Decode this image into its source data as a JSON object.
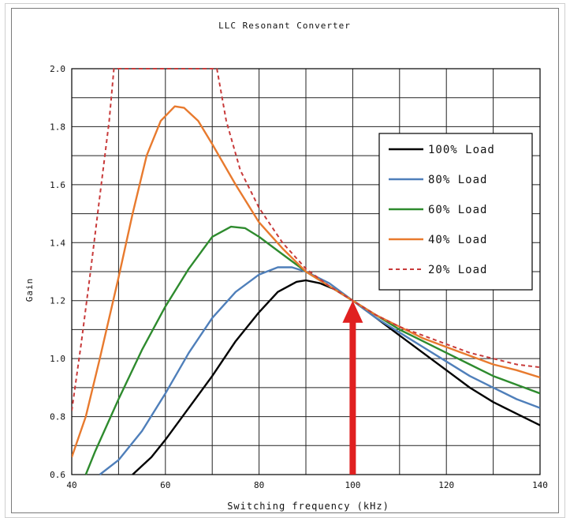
{
  "chart_data": {
    "type": "line",
    "title": "LLC Resonant Converter",
    "xlabel": "Switching frequency (kHz)",
    "ylabel": "Gain",
    "xlim": [
      40,
      140
    ],
    "ylim": [
      0.6,
      2.0
    ],
    "xticks": [
      40,
      60,
      80,
      100,
      120,
      140
    ],
    "yticks": [
      0.6,
      0.8,
      1.0,
      1.2,
      1.4,
      1.6,
      1.8,
      2.0
    ],
    "ytick_labels": [
      "0.6",
      "0.8",
      "1.0",
      "1.2",
      "1.4",
      "1.6",
      "1.8",
      "2.0"
    ],
    "grid": true,
    "legend_position": "top-right",
    "annotation": {
      "type": "arrow",
      "x": 100,
      "y_from": 0.6,
      "y_to": 1.2,
      "color": "#e02020"
    },
    "series": [
      {
        "name": "100% Load",
        "color": "#000000",
        "dash": false,
        "points": [
          [
            53,
            0.6
          ],
          [
            57,
            0.66
          ],
          [
            60,
            0.72
          ],
          [
            65,
            0.83
          ],
          [
            70,
            0.94
          ],
          [
            75,
            1.06
          ],
          [
            80,
            1.16
          ],
          [
            84,
            1.23
          ],
          [
            88,
            1.265
          ],
          [
            90,
            1.27
          ],
          [
            93,
            1.26
          ],
          [
            96,
            1.24
          ],
          [
            100,
            1.2
          ],
          [
            105,
            1.14
          ],
          [
            110,
            1.08
          ],
          [
            115,
            1.02
          ],
          [
            120,
            0.96
          ],
          [
            125,
            0.9
          ],
          [
            130,
            0.85
          ],
          [
            135,
            0.81
          ],
          [
            140,
            0.77
          ]
        ]
      },
      {
        "name": "80% Load",
        "color": "#4f7fba",
        "dash": false,
        "points": [
          [
            46,
            0.6
          ],
          [
            50,
            0.65
          ],
          [
            55,
            0.75
          ],
          [
            60,
            0.88
          ],
          [
            65,
            1.02
          ],
          [
            70,
            1.14
          ],
          [
            75,
            1.23
          ],
          [
            80,
            1.29
          ],
          [
            84,
            1.315
          ],
          [
            87,
            1.315
          ],
          [
            90,
            1.3
          ],
          [
            95,
            1.26
          ],
          [
            100,
            1.2
          ],
          [
            105,
            1.14
          ],
          [
            110,
            1.09
          ],
          [
            115,
            1.04
          ],
          [
            120,
            0.99
          ],
          [
            125,
            0.94
          ],
          [
            130,
            0.9
          ],
          [
            135,
            0.86
          ],
          [
            140,
            0.83
          ]
        ]
      },
      {
        "name": "60% Load",
        "color": "#2e8b2e",
        "dash": false,
        "points": [
          [
            43,
            0.6
          ],
          [
            45,
            0.68
          ],
          [
            50,
            0.86
          ],
          [
            55,
            1.03
          ],
          [
            60,
            1.18
          ],
          [
            65,
            1.31
          ],
          [
            70,
            1.42
          ],
          [
            74,
            1.455
          ],
          [
            77,
            1.45
          ],
          [
            80,
            1.42
          ],
          [
            85,
            1.36
          ],
          [
            90,
            1.3
          ],
          [
            95,
            1.25
          ],
          [
            100,
            1.2
          ],
          [
            105,
            1.15
          ],
          [
            110,
            1.1
          ],
          [
            115,
            1.06
          ],
          [
            120,
            1.02
          ],
          [
            125,
            0.98
          ],
          [
            130,
            0.94
          ],
          [
            135,
            0.91
          ],
          [
            140,
            0.88
          ]
        ]
      },
      {
        "name": "40% Load",
        "color": "#e87a2e",
        "dash": false,
        "points": [
          [
            40,
            0.66
          ],
          [
            43,
            0.8
          ],
          [
            46,
            1.0
          ],
          [
            50,
            1.28
          ],
          [
            53,
            1.5
          ],
          [
            56,
            1.7
          ],
          [
            59,
            1.82
          ],
          [
            62,
            1.87
          ],
          [
            64,
            1.865
          ],
          [
            67,
            1.82
          ],
          [
            70,
            1.74
          ],
          [
            75,
            1.6
          ],
          [
            80,
            1.47
          ],
          [
            85,
            1.38
          ],
          [
            90,
            1.3
          ],
          [
            95,
            1.25
          ],
          [
            100,
            1.2
          ],
          [
            105,
            1.15
          ],
          [
            110,
            1.11
          ],
          [
            115,
            1.07
          ],
          [
            120,
            1.04
          ],
          [
            125,
            1.01
          ],
          [
            130,
            0.98
          ],
          [
            135,
            0.96
          ],
          [
            140,
            0.935
          ]
        ]
      },
      {
        "name": "20% Load",
        "color": "#c83a3a",
        "dash": true,
        "points": [
          [
            40,
            0.82
          ],
          [
            42,
            1.05
          ],
          [
            44,
            1.3
          ],
          [
            46,
            1.56
          ],
          [
            48,
            1.82
          ],
          [
            49,
            2.0
          ],
          [
            71,
            2.0
          ],
          [
            73,
            1.82
          ],
          [
            76,
            1.65
          ],
          [
            80,
            1.52
          ],
          [
            85,
            1.4
          ],
          [
            90,
            1.31
          ],
          [
            95,
            1.25
          ],
          [
            100,
            1.2
          ],
          [
            105,
            1.15
          ],
          [
            110,
            1.11
          ],
          [
            115,
            1.08
          ],
          [
            120,
            1.05
          ],
          [
            125,
            1.02
          ],
          [
            130,
            1.0
          ],
          [
            135,
            0.98
          ],
          [
            140,
            0.97
          ]
        ]
      }
    ]
  }
}
